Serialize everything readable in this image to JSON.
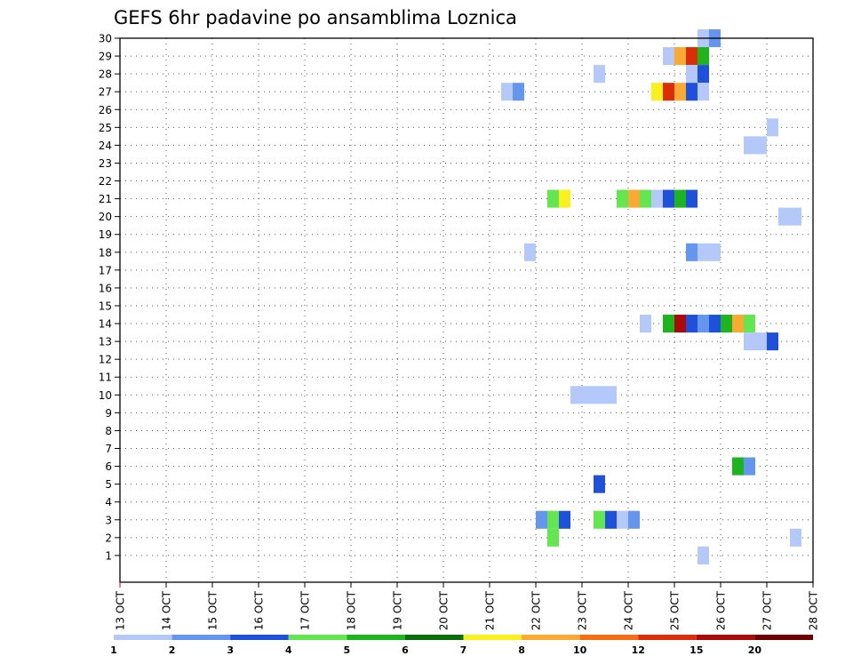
{
  "chart_data": {
    "type": "heatmap",
    "title": "GEFS 6hr padavine po ansamblima Loznica",
    "xlabel": "",
    "ylabel": "",
    "x_ticks": [
      "13 OCT",
      "14 OCT",
      "15 OCT",
      "16 OCT",
      "17 OCT",
      "18 OCT",
      "19 OCT",
      "20 OCT",
      "21 OCT",
      "22 OCT",
      "23 OCT",
      "24 OCT",
      "25 OCT",
      "26 OCT",
      "27 OCT",
      "28 OCT"
    ],
    "x_range_days": [
      0,
      15
    ],
    "y_ticks": [
      "1",
      "2",
      "3",
      "4",
      "5",
      "6",
      "7",
      "8",
      "9",
      "10",
      "11",
      "12",
      "13",
      "14",
      "15",
      "16",
      "17",
      "18",
      "19",
      "20",
      "21",
      "22",
      "23",
      "24",
      "25",
      "26",
      "27",
      "28",
      "29",
      "30"
    ],
    "ylim": [
      0,
      30
    ],
    "grid": true,
    "colorbar": {
      "labels": [
        "1",
        "2",
        "3",
        "4",
        "5",
        "6",
        "7",
        "8",
        "10",
        "12",
        "15",
        "20"
      ],
      "colors": [
        "#b4c8fa",
        "#6496f0",
        "#1e50dc",
        "#64e650",
        "#1eb41e",
        "#0a6e0a",
        "#faf01e",
        "#faaa32",
        "#f56e14",
        "#dc2d0a",
        "#aa0a0a",
        "#6e0000"
      ]
    },
    "cells": [
      {
        "t": 25.5,
        "m": 30,
        "v": 1
      },
      {
        "t": 25.75,
        "m": 30,
        "v": 2
      },
      {
        "t": 24.75,
        "m": 29,
        "v": 1
      },
      {
        "t": 25.0,
        "m": 29,
        "v": 9
      },
      {
        "t": 25.25,
        "m": 29,
        "v": 12
      },
      {
        "t": 25.5,
        "m": 29,
        "v": 5
      },
      {
        "t": 23.25,
        "m": 28,
        "v": 1
      },
      {
        "t": 25.25,
        "m": 28,
        "v": 1
      },
      {
        "t": 25.5,
        "m": 28,
        "v": 3
      },
      {
        "t": 21.25,
        "m": 27,
        "v": 1
      },
      {
        "t": 21.5,
        "m": 27,
        "v": 2
      },
      {
        "t": 24.5,
        "m": 27,
        "v": 7
      },
      {
        "t": 24.75,
        "m": 27,
        "v": 12
      },
      {
        "t": 25.0,
        "m": 27,
        "v": 9
      },
      {
        "t": 25.25,
        "m": 27,
        "v": 3
      },
      {
        "t": 25.5,
        "m": 27,
        "v": 1
      },
      {
        "t": 27.0,
        "m": 25,
        "v": 1
      },
      {
        "t": 26.5,
        "m": 24,
        "v": 1
      },
      {
        "t": 26.75,
        "m": 24,
        "v": 1
      },
      {
        "t": 22.25,
        "m": 21,
        "v": 4
      },
      {
        "t": 22.5,
        "m": 21,
        "v": 7
      },
      {
        "t": 23.75,
        "m": 21,
        "v": 4
      },
      {
        "t": 24.0,
        "m": 21,
        "v": 9
      },
      {
        "t": 24.25,
        "m": 21,
        "v": 4
      },
      {
        "t": 24.5,
        "m": 21,
        "v": 1
      },
      {
        "t": 24.75,
        "m": 21,
        "v": 3
      },
      {
        "t": 25.0,
        "m": 21,
        "v": 5
      },
      {
        "t": 25.25,
        "m": 21,
        "v": 3
      },
      {
        "t": 27.25,
        "m": 20,
        "v": 1
      },
      {
        "t": 27.5,
        "m": 20,
        "v": 1
      },
      {
        "t": 21.75,
        "m": 18,
        "v": 1
      },
      {
        "t": 25.25,
        "m": 18,
        "v": 2
      },
      {
        "t": 25.5,
        "m": 18,
        "v": 1
      },
      {
        "t": 25.75,
        "m": 18,
        "v": 1
      },
      {
        "t": 24.25,
        "m": 14,
        "v": 1
      },
      {
        "t": 24.75,
        "m": 14,
        "v": 5
      },
      {
        "t": 25.0,
        "m": 14,
        "v": 15
      },
      {
        "t": 25.25,
        "m": 14,
        "v": 3
      },
      {
        "t": 25.5,
        "m": 14,
        "v": 2
      },
      {
        "t": 25.75,
        "m": 14,
        "v": 3
      },
      {
        "t": 26.0,
        "m": 14,
        "v": 5
      },
      {
        "t": 26.25,
        "m": 14,
        "v": 9
      },
      {
        "t": 26.5,
        "m": 14,
        "v": 4
      },
      {
        "t": 26.5,
        "m": 13,
        "v": 1
      },
      {
        "t": 26.75,
        "m": 13,
        "v": 1
      },
      {
        "t": 27.0,
        "m": 13,
        "v": 3
      },
      {
        "t": 22.75,
        "m": 10,
        "v": 1
      },
      {
        "t": 23.0,
        "m": 10,
        "v": 1
      },
      {
        "t": 23.25,
        "m": 10,
        "v": 1
      },
      {
        "t": 23.5,
        "m": 10,
        "v": 1
      },
      {
        "t": 26.25,
        "m": 6,
        "v": 5
      },
      {
        "t": 26.5,
        "m": 6,
        "v": 2
      },
      {
        "t": 23.25,
        "m": 5,
        "v": 3
      },
      {
        "t": 22.0,
        "m": 3,
        "v": 2
      },
      {
        "t": 22.25,
        "m": 3,
        "v": 4
      },
      {
        "t": 22.5,
        "m": 3,
        "v": 3
      },
      {
        "t": 23.25,
        "m": 3,
        "v": 4
      },
      {
        "t": 23.5,
        "m": 3,
        "v": 3
      },
      {
        "t": 23.75,
        "m": 3,
        "v": 1
      },
      {
        "t": 24.0,
        "m": 3,
        "v": 2
      },
      {
        "t": 22.25,
        "m": 2,
        "v": 4
      },
      {
        "t": 27.5,
        "m": 2,
        "v": 1
      },
      {
        "t": 25.5,
        "m": 1,
        "v": 1
      }
    ]
  }
}
